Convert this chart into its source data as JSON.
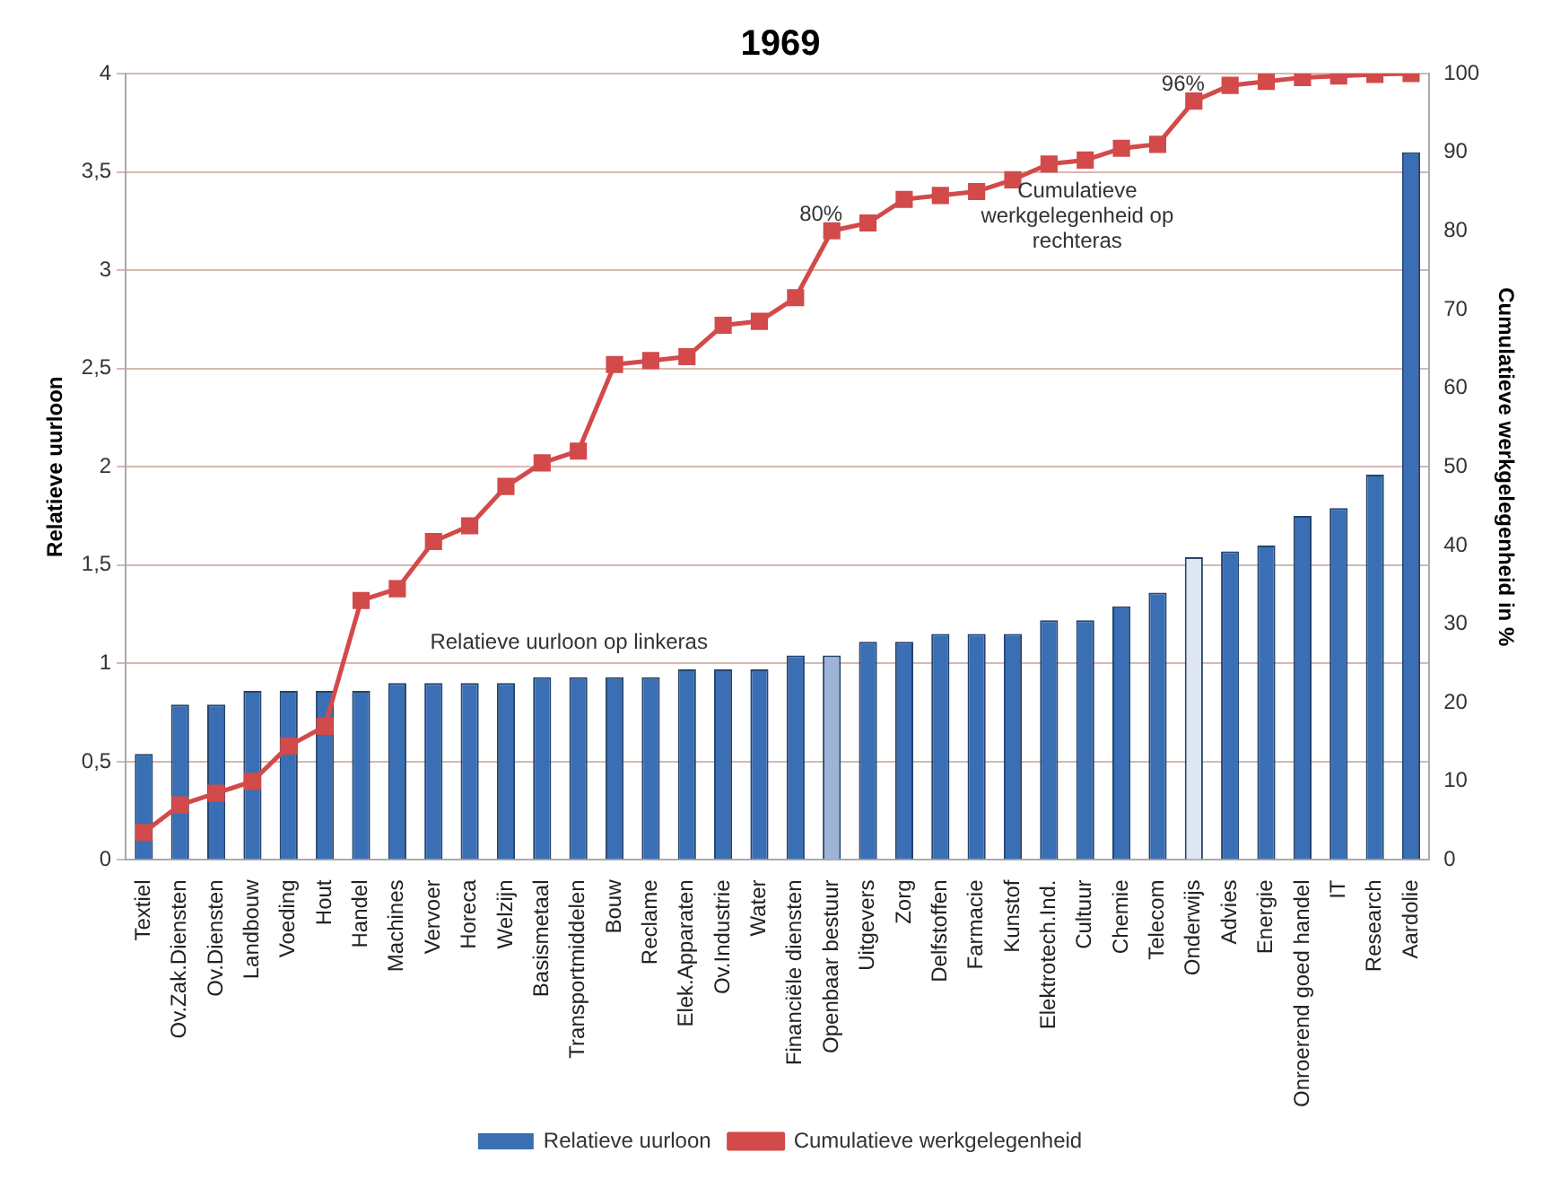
{
  "chart_data": {
    "type": "bar",
    "title": "1969",
    "ylabel": "Relatieve uurloon",
    "y2label": "Cumulatieve werkgelegenheid in %",
    "categories": [
      "Textiel",
      "Ov.Zak.Diensten",
      "Ov.Diensten",
      "Landbouw",
      "Voeding",
      "Hout",
      "Handel",
      "Machines",
      "Vervoer",
      "Horeca",
      "Welzijn",
      "Basismetaal",
      "Transportmiddelen",
      "Bouw",
      "Reclame",
      "Elek.Apparaten",
      "Ov.Industrie",
      "Water",
      "Financiële diensten",
      "Openbaar bestuur",
      "Uitgevers",
      "Zorg",
      "Delfstoffen",
      "Farmacie",
      "Kunstof",
      "Elektrotech.Ind.",
      "Cultuur",
      "Chemie",
      "Telecom",
      "Onderwijs",
      "Advies",
      "Energie",
      "Onroerend goed handel",
      "IT",
      "Research",
      "Aardolie"
    ],
    "series": [
      {
        "name": "Relatieve uurloon",
        "color": "#3a6fb5",
        "colors": [
          "#3a6fb5",
          "#3a6fb5",
          "#3a6fb5",
          "#3a6fb5",
          "#3a6fb5",
          "#3a6fb5",
          "#3a6fb5",
          "#3a6fb5",
          "#3a6fb5",
          "#3a6fb5",
          "#3a6fb5",
          "#3a6fb5",
          "#3a6fb5",
          "#3a6fb5",
          "#3a6fb5",
          "#3a6fb5",
          "#3a6fb5",
          "#3a6fb5",
          "#3a6fb5",
          "#9db4d6",
          "#3a6fb5",
          "#3a6fb5",
          "#3a6fb5",
          "#3a6fb5",
          "#3a6fb5",
          "#3a6fb5",
          "#3a6fb5",
          "#3a6fb5",
          "#3a6fb5",
          "#dde6f2",
          "#3a6fb5",
          "#3a6fb5",
          "#3a6fb5",
          "#3a6fb5",
          "#3a6fb5",
          "#3a6fb5"
        ],
        "values": [
          0.54,
          0.79,
          0.79,
          0.86,
          0.86,
          0.86,
          0.86,
          0.9,
          0.9,
          0.9,
          0.9,
          0.93,
          0.93,
          0.93,
          0.93,
          0.97,
          0.97,
          0.97,
          1.04,
          1.04,
          1.11,
          1.11,
          1.15,
          1.15,
          1.15,
          1.22,
          1.22,
          1.29,
          1.36,
          1.54,
          1.57,
          1.6,
          1.75,
          1.79,
          1.96,
          3.6
        ]
      },
      {
        "name": "Cumulatieve werkgelegenheid",
        "type": "line",
        "axis": "y2",
        "color": "#d24a4a",
        "values": [
          3.5,
          7,
          8.5,
          10,
          14.5,
          17,
          33,
          34.5,
          40.5,
          42.5,
          47.5,
          50.5,
          52,
          63,
          63.5,
          64,
          68,
          68.5,
          71.5,
          80,
          81,
          84,
          84.5,
          85,
          86.5,
          88.5,
          89,
          90.5,
          91,
          96.5,
          98.5,
          99,
          99.5,
          99.7,
          99.9,
          100
        ],
        "value_labels": [
          null,
          null,
          null,
          null,
          null,
          null,
          null,
          null,
          null,
          null,
          null,
          null,
          null,
          null,
          null,
          null,
          null,
          null,
          null,
          "80%",
          null,
          null,
          null,
          null,
          null,
          null,
          null,
          null,
          null,
          "96%",
          null,
          null,
          null,
          null,
          null,
          null
        ]
      }
    ],
    "ylim": [
      0,
      4
    ],
    "yticks": [
      0,
      {
        "value": 0.5,
        "label": "0,5"
      },
      1,
      {
        "value": 1.5,
        "label": "1,5"
      },
      2,
      {
        "value": 2.5,
        "label": "2,5"
      },
      3,
      {
        "value": 3.5,
        "label": "3,5"
      },
      4
    ],
    "y2lim": [
      0,
      100
    ],
    "y2ticks": [
      0,
      10,
      20,
      30,
      40,
      50,
      60,
      70,
      80,
      90,
      100
    ],
    "annotations": [
      "Relatieve uurloon op linkeras",
      "Cumulatieve werkgelegenheid op rechteras"
    ],
    "grid": "y",
    "legend": "bottom",
    "marker": "square",
    "line_style": "solid"
  }
}
